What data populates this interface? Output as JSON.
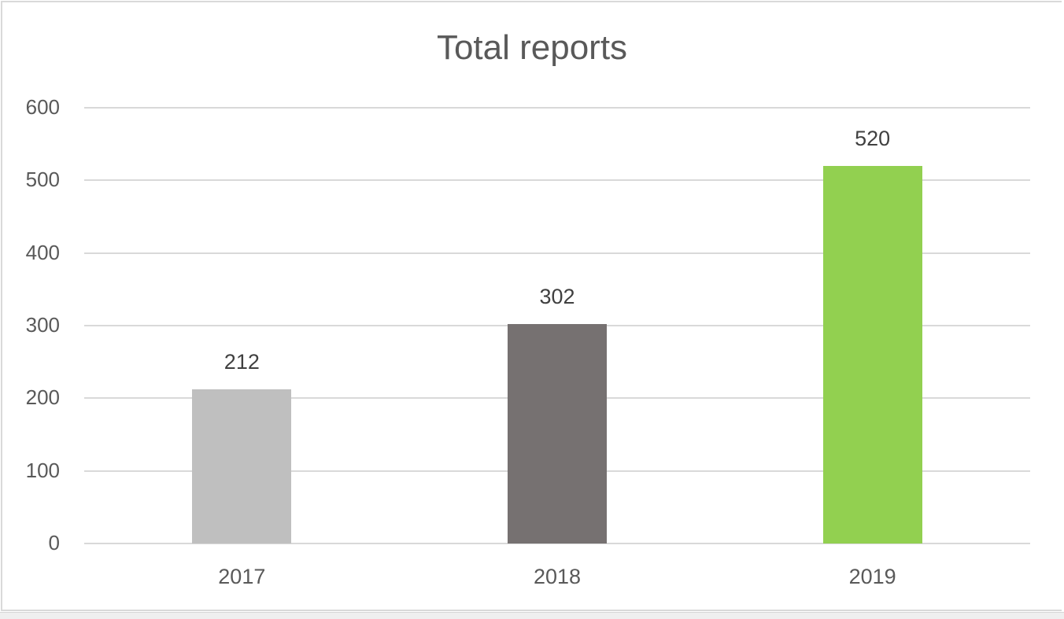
{
  "chart_data": {
    "type": "bar",
    "title": "Total reports",
    "categories": [
      "2017",
      "2018",
      "2019"
    ],
    "values": [
      212,
      302,
      520
    ],
    "bar_colors": [
      "#bfbfbf",
      "#767171",
      "#92d050"
    ],
    "xlabel": "",
    "ylabel": "",
    "ylim": [
      0,
      600
    ],
    "yticks": [
      "0",
      "100",
      "200",
      "300",
      "400",
      "500",
      "600"
    ],
    "grid": true,
    "legend": "none",
    "data_labels": [
      "212",
      "302",
      "520"
    ]
  }
}
